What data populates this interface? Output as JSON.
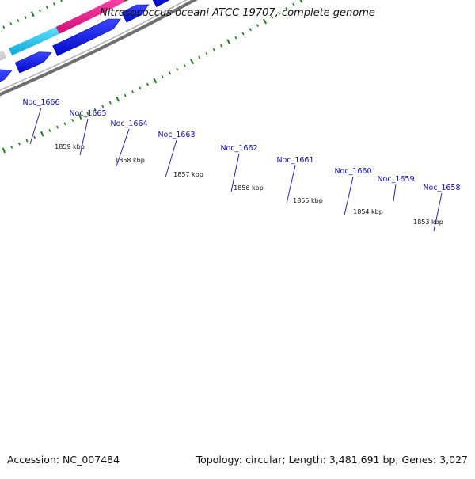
{
  "title": "Nitrosococcus oceani ATCC 19707, complete genome",
  "footer": {
    "accession": "Accession: NC_007484",
    "summary": "Topology: circular; Length: 3,481,691 bp; Genes: 3,027"
  },
  "gene_labels": [
    "Noc_1666",
    "Noc_1665",
    "Noc_1664",
    "Noc_1663",
    "Noc_1662",
    "Noc_1661",
    "Noc_1660",
    "Noc_1659",
    "Noc_1658"
  ],
  "kbp_labels": [
    "1859 kbp",
    "1858 kbp",
    "1857 kbp",
    "1856 kbp",
    "1855 kbp",
    "1854 kbp",
    "1853 kbp"
  ],
  "colors": {
    "gene_label": "#1010c8",
    "arrow": "#0a14e6",
    "tick": "#1e7d1e",
    "backbone": "#808080",
    "purple": "#7a6fd6",
    "navy": "#151552",
    "steel": "#4a80b8",
    "silver": "#bcbcbc",
    "cyan": "#1ec8ee",
    "magenta": "#f0188e",
    "green": "#2e8a2e",
    "lime": "#b4ee3a"
  }
}
